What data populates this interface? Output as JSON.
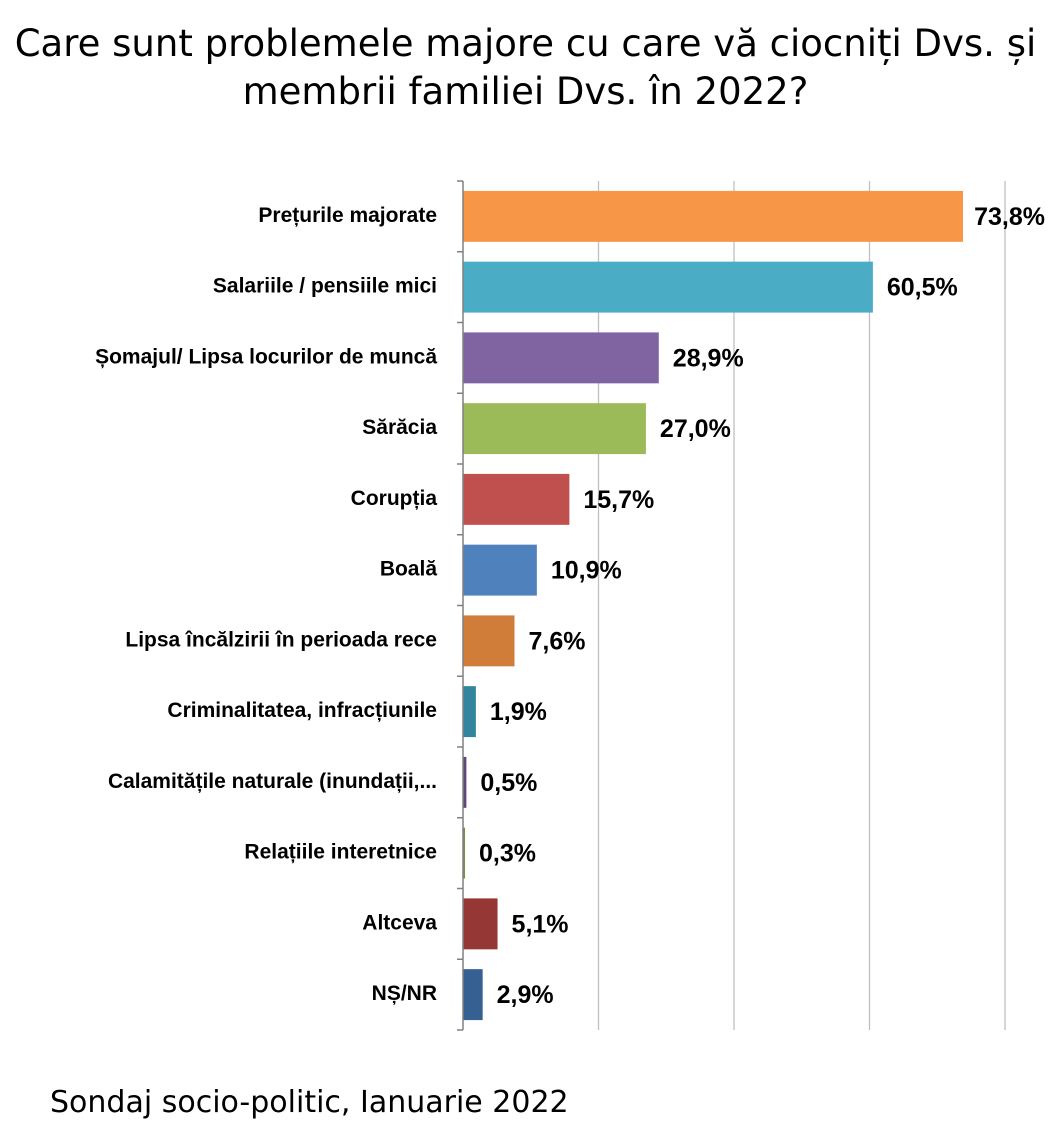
{
  "title_line1": "Care sunt problemele majore cu care vă ciocniți Dvs. și",
  "title_line2": "membrii familiei Dvs. în 2022?",
  "footnote": "Sondaj socio-politic, Ianuarie 2022",
  "chart_data": {
    "type": "bar",
    "orientation": "horizontal",
    "title": "Care sunt problemele majore cu care vă ciocniți Dvs. și membrii familiei Dvs. în 2022?",
    "categories": [
      "Prețurile majorate",
      "Salariile / pensiile mici",
      "Șomajul/ Lipsa locurilor de muncă",
      "Sărăcia",
      "Corupția",
      "Boală",
      "Lipsa încălzirii în perioada rece",
      "Criminalitatea, infracțiunile",
      "Calamitățile naturale (inundații,...",
      "Relațiile interetnice",
      "Altceva",
      "NȘ/NR"
    ],
    "values": [
      73.8,
      60.5,
      28.9,
      27.0,
      15.7,
      10.9,
      7.6,
      1.9,
      0.5,
      0.3,
      5.1,
      2.9
    ],
    "value_labels": [
      "73,8%",
      "60,5%",
      "28,9%",
      "27,0%",
      "15,7%",
      "10,9%",
      "7,6%",
      "1,9%",
      "0,5%",
      "0,3%",
      "5,1%",
      "2,9%"
    ],
    "colors": [
      "#F79646",
      "#4BACC6",
      "#8064A2",
      "#9BBB59",
      "#C0504D",
      "#4F81BD",
      "#D07D3A",
      "#31859C",
      "#60497A",
      "#76923C",
      "#953735",
      "#366092"
    ],
    "xlim": [
      0,
      80
    ],
    "gridlines": [
      20,
      40,
      60,
      80
    ],
    "grid": true,
    "legend": "none"
  }
}
